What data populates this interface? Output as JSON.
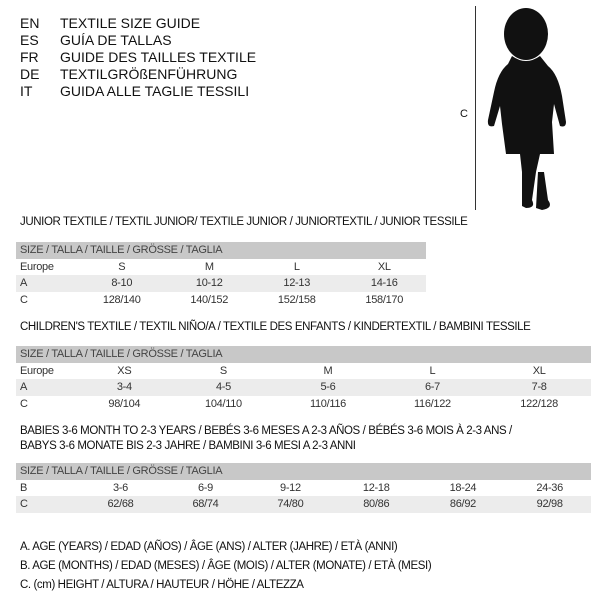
{
  "languages": [
    {
      "code": "EN",
      "name": "TEXTILE SIZE GUIDE"
    },
    {
      "code": "ES",
      "name": "GUÍA DE TALLAS"
    },
    {
      "code": "FR",
      "name": "GUIDE DES TAILLES TEXTILE"
    },
    {
      "code": "DE",
      "name": "TEXTILGRÖßENFÜHRUNG"
    },
    {
      "code": "IT",
      "name": "GUIDA ALLE TAGLIE TESSILI"
    }
  ],
  "figure": {
    "height_label": "C"
  },
  "size_header": "SIZE / TALLA / TAILLE / GRÖSSE / TAGLIA",
  "junior": {
    "title": "JUNIOR TEXTILE / TEXTIL JUNIOR/ TEXTILE JUNIOR / JUNIORTEXTIL / JUNIOR TESSILE",
    "rows": [
      [
        "Europe",
        "S",
        "M",
        "L",
        "XL"
      ],
      [
        "A",
        "8-10",
        "10-12",
        "12-13",
        "14-16"
      ],
      [
        "C",
        "128/140",
        "140/152",
        "152/158",
        "158/170"
      ]
    ]
  },
  "children": {
    "title": "CHILDREN'S TEXTILE / TEXTIL NIÑO/A / TEXTILE DES ENFANTS / KINDERTEXTIL / BAMBINI TESSILE",
    "rows": [
      [
        "Europe",
        "XS",
        "S",
        "M",
        "L",
        "XL"
      ],
      [
        "A",
        "3-4",
        "4-5",
        "5-6",
        "6-7",
        "7-8"
      ],
      [
        "C",
        "98/104",
        "104/110",
        "110/116",
        "116/122",
        "122/128"
      ]
    ]
  },
  "babies": {
    "title_line1": "BABIES 3-6 MONTH TO 2-3 YEARS / BEBÉS 3-6 MESES A 2-3 AÑOS / BÉBÉS 3-6 MOIS À 2-3 ANS /",
    "title_line2": "BABYS 3-6 MONATE BIS 2-3 JAHRE / BAMBINI 3-6 MESI A 2-3 ANNI",
    "rows": [
      [
        "B",
        "3-6",
        "6-9",
        "9-12",
        "12-18",
        "18-24",
        "24-36"
      ],
      [
        "C",
        "62/68",
        "68/74",
        "74/80",
        "80/86",
        "86/92",
        "92/98"
      ]
    ]
  },
  "legend": [
    "A. AGE (YEARS) / EDAD (AÑOS) / ÂGE (ANS) / ALTER (JAHRE) / ETÀ (ANNI)",
    "B. AGE (MONTHS) / EDAD (MESES) / ÂGE (MOIS) / ALTER (MONATE) / ETÀ (MESI)",
    "C. (cm) HEIGHT / ALTURA / HAUTEUR / HÖHE / ALTEZZA"
  ]
}
